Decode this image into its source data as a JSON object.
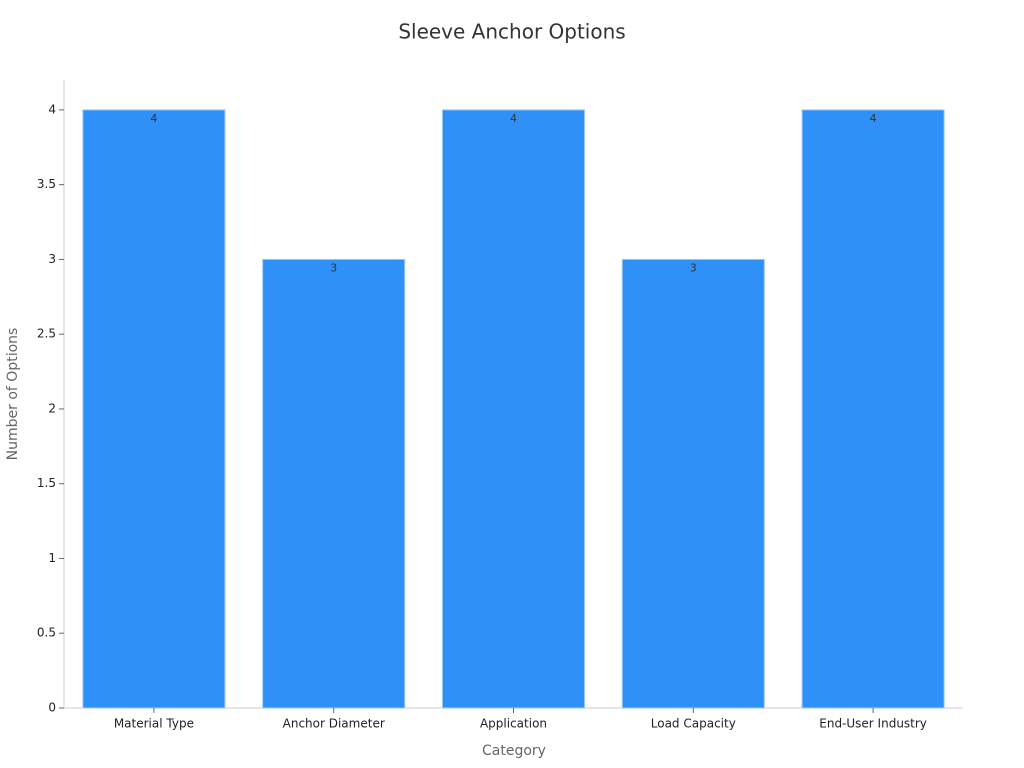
{
  "chart_data": {
    "type": "bar",
    "title": "Sleeve Anchor Options",
    "x_label": "Category",
    "y_label": "Number of Options",
    "categories": [
      "Material Type",
      "Anchor Diameter",
      "Application",
      "Load Capacity",
      "End-User Industry"
    ],
    "values": [
      4,
      3,
      4,
      3,
      4
    ],
    "color": "#2f91f8",
    "ylim": [
      0,
      4.2
    ],
    "yticks": [
      0,
      0.5,
      1,
      1.5,
      2,
      2.5,
      3,
      3.5,
      4
    ],
    "grid": false
  }
}
